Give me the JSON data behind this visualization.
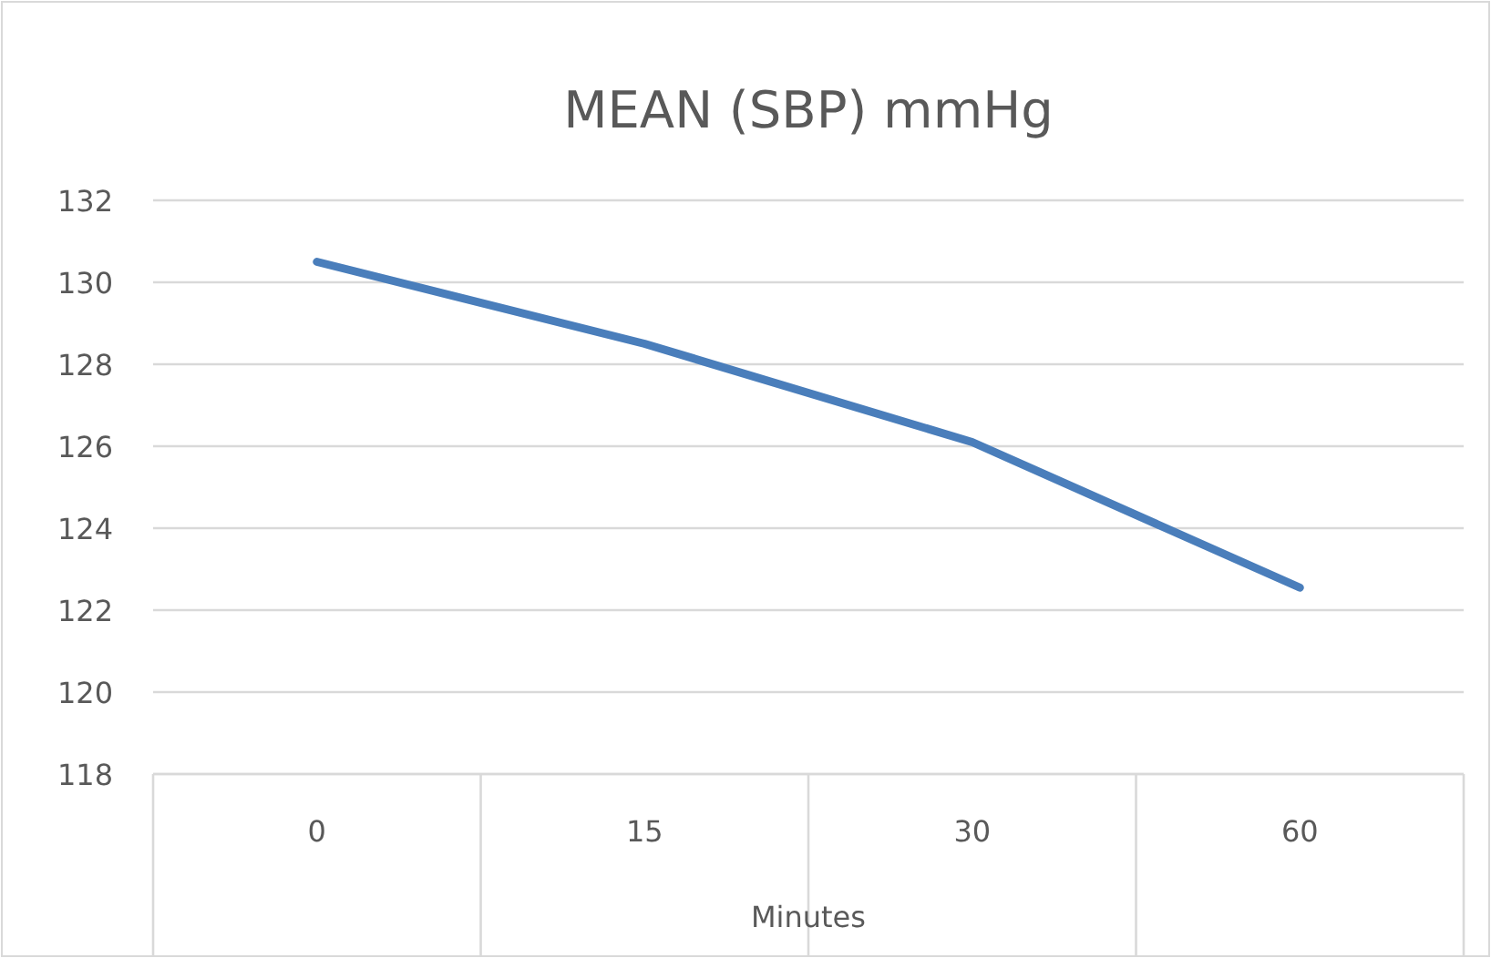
{
  "chart_data": {
    "type": "line",
    "title": "MEAN (SBP) mmHg",
    "xlabel": "Minutes",
    "categories": [
      "0",
      "15",
      "30",
      "60"
    ],
    "series": [
      {
        "color": "#4a7ebb",
        "values": [
          130.5,
          128.5,
          126.1,
          122.55
        ]
      }
    ],
    "ylim": [
      118,
      132
    ],
    "yticks": [
      118,
      120,
      122,
      124,
      126,
      128,
      130,
      132
    ],
    "grid": "y",
    "marker": "none",
    "line_style": "solid"
  }
}
